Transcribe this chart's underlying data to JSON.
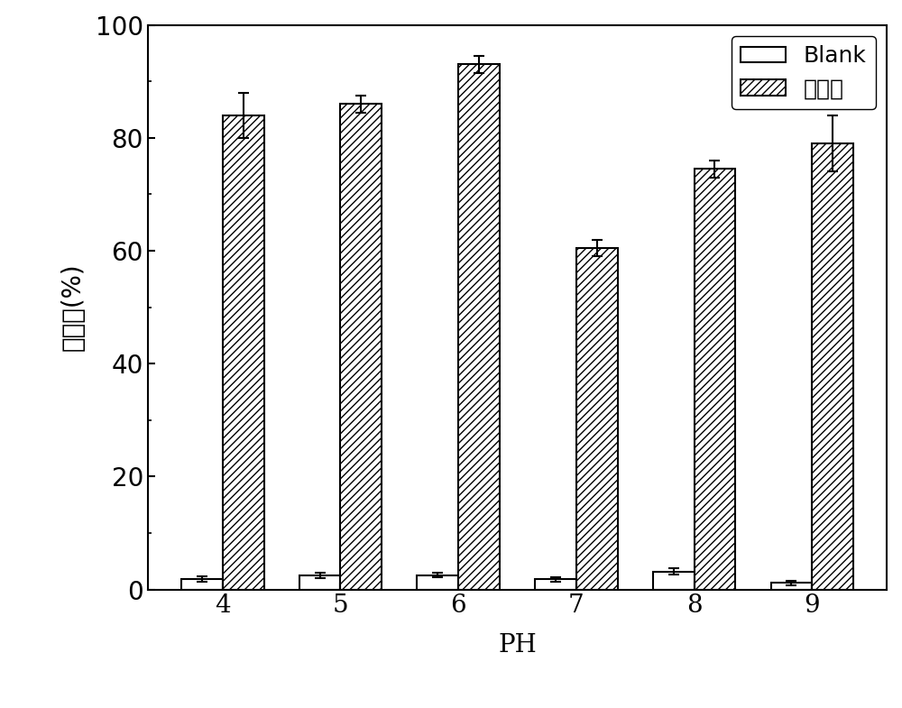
{
  "categories": [
    "4",
    "5",
    "6",
    "7",
    "8",
    "9"
  ],
  "blank_values": [
    1.8,
    2.5,
    2.5,
    1.8,
    3.2,
    1.2
  ],
  "blank_errors": [
    0.5,
    0.5,
    0.4,
    0.4,
    0.5,
    0.4
  ],
  "removal_values": [
    84.0,
    86.0,
    93.0,
    60.5,
    74.5,
    79.0
  ],
  "removal_errors": [
    4.0,
    1.5,
    1.5,
    1.5,
    1.5,
    5.0
  ],
  "ylabel": "去除率(%)",
  "xlabel": "PH",
  "ylim": [
    0,
    100
  ],
  "yticks": [
    0,
    20,
    40,
    60,
    80,
    100
  ],
  "legend_blank": "Blank",
  "legend_removal": "去除率",
  "bar_width": 0.35,
  "blank_color": "#ffffff",
  "removal_color": "#ffffff",
  "edge_color": "#000000",
  "label_fontsize": 20,
  "tick_fontsize": 20,
  "legend_fontsize": 18
}
